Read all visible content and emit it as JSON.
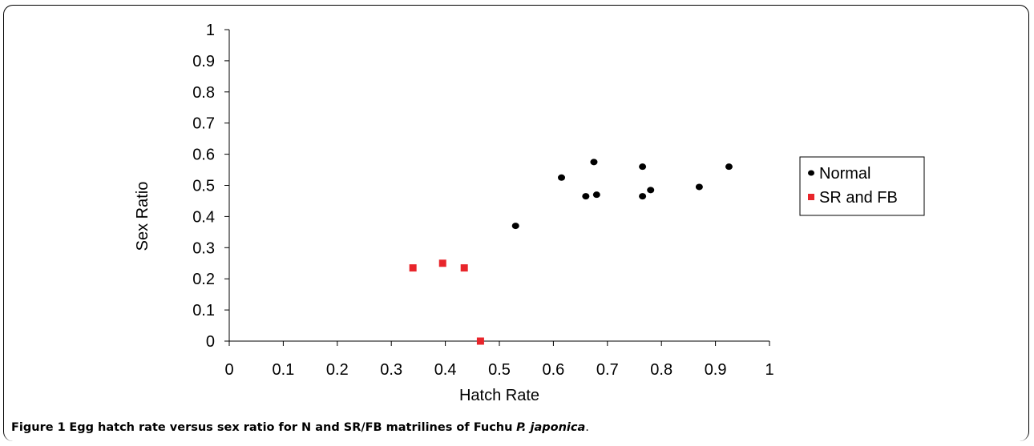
{
  "caption": {
    "label": "Figure 1",
    "text_before": "Egg hatch rate versus sex ratio for N and SR/FB matrilines of Fuchu",
    "species": "P. japonica",
    "text_after": "."
  },
  "chart_data": {
    "type": "scatter",
    "xlabel": "Hatch Rate",
    "ylabel": "Sex Ratio",
    "xlim": [
      0,
      1
    ],
    "ylim": [
      0,
      1
    ],
    "xticks": [
      "0",
      "0.1",
      "0.2",
      "0.3",
      "0.4",
      "0.5",
      "0.6",
      "0.7",
      "0.8",
      "0.9",
      "1"
    ],
    "yticks": [
      "0",
      "0.1",
      "0.2",
      "0.3",
      "0.4",
      "0.5",
      "0.6",
      "0.7",
      "0.8",
      "0.9",
      "1"
    ],
    "grid": false,
    "legend_position": "right",
    "series": [
      {
        "name": "Normal",
        "marker": "circle",
        "color": "#000000",
        "points": [
          {
            "x": 0.53,
            "y": 0.37
          },
          {
            "x": 0.615,
            "y": 0.525
          },
          {
            "x": 0.66,
            "y": 0.465
          },
          {
            "x": 0.675,
            "y": 0.575
          },
          {
            "x": 0.68,
            "y": 0.47
          },
          {
            "x": 0.765,
            "y": 0.56
          },
          {
            "x": 0.765,
            "y": 0.465
          },
          {
            "x": 0.78,
            "y": 0.485
          },
          {
            "x": 0.87,
            "y": 0.495
          },
          {
            "x": 0.925,
            "y": 0.56
          }
        ]
      },
      {
        "name": "SR and FB",
        "marker": "square",
        "color": "#e8252b",
        "points": [
          {
            "x": 0.34,
            "y": 0.235
          },
          {
            "x": 0.395,
            "y": 0.25
          },
          {
            "x": 0.435,
            "y": 0.235
          },
          {
            "x": 0.465,
            "y": 0.0
          }
        ]
      }
    ]
  }
}
